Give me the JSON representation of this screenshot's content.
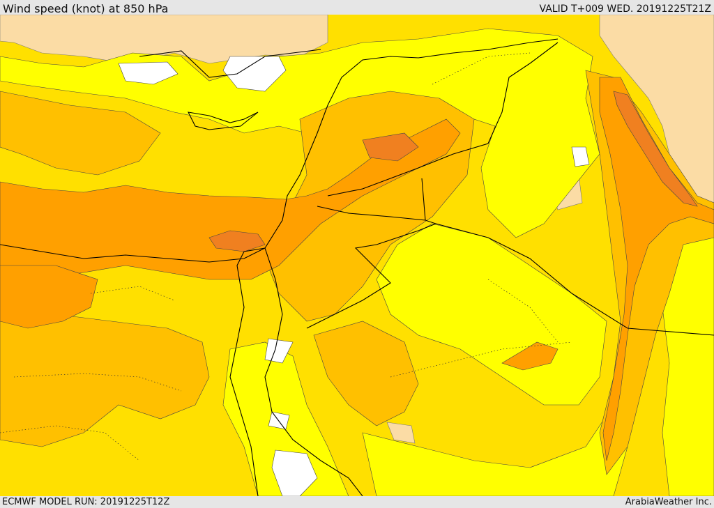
{
  "header": {
    "title": "Wind speed (knot) at 850 hPa",
    "valid": "VALID T+009 WED. 20191225T21Z"
  },
  "footer": {
    "model_run": "ECMWF MODEL RUN: 20191225T12Z",
    "brand": "ArabiaWeather Inc."
  },
  "colors": {
    "land_tan": "#fbdca5",
    "light_yellow": "#ffff00",
    "yellow": "#ffe000",
    "gold": "#ffc000",
    "orange": "#ffa000",
    "dark_orange": "#f08020",
    "calm_white": "#ffffff",
    "borders": "#000000"
  },
  "map": {
    "variable": "Wind speed",
    "units": "knot",
    "pressure_level": "850 hPa"
  }
}
